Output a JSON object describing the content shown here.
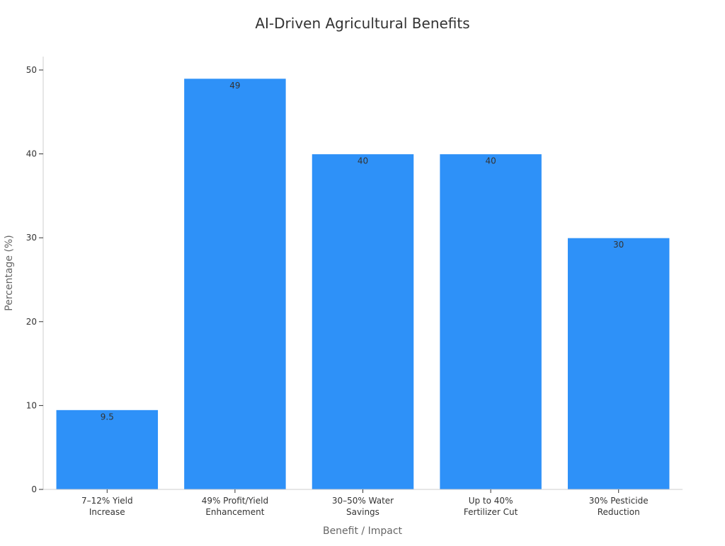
{
  "chart_data": {
    "type": "bar",
    "title": "AI-Driven Agricultural Benefits",
    "xlabel": "Benefit / Impact",
    "ylabel": "Percentage (%)",
    "categories": [
      [
        "7–12% Yield",
        "Increase"
      ],
      [
        "49% Profit/Yield",
        "Enhancement"
      ],
      [
        "30–50% Water",
        "Savings"
      ],
      [
        "Up to 40%",
        "Fertilizer Cut"
      ],
      [
        "30% Pesticide",
        "Reduction"
      ]
    ],
    "values": [
      9.5,
      49,
      40,
      40,
      30
    ],
    "data_labels": [
      "9.5",
      "49",
      "40",
      "40",
      "30"
    ],
    "ylim": [
      0,
      51.6
    ],
    "yticks": [
      0,
      10,
      20,
      30,
      40,
      50
    ],
    "grid": false,
    "colors": {
      "bar": "#2e91f8",
      "bar_edge": "#ffffff"
    }
  }
}
